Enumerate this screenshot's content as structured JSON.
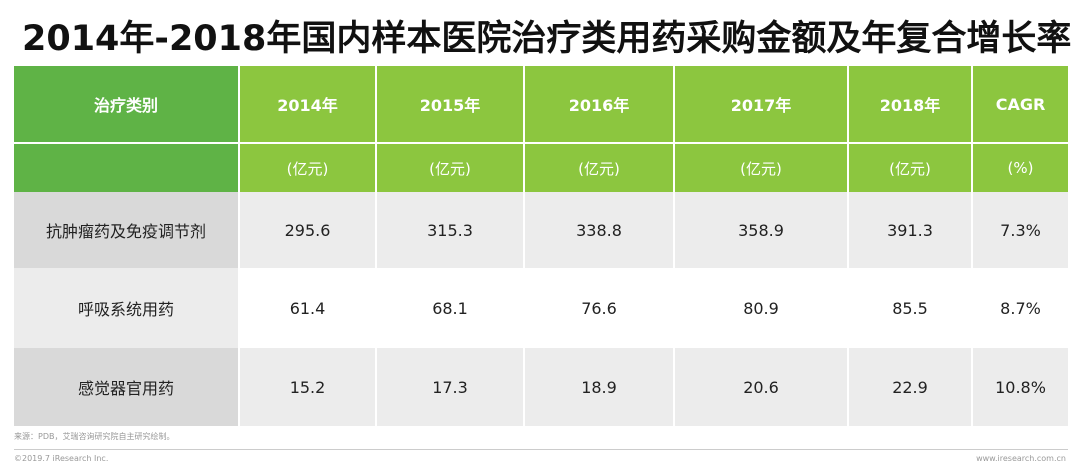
{
  "title": "2014年-2018年国内样本医院治疗类用药采购金额及年复合增长率",
  "table": {
    "headers": [
      "治疗类别",
      "2014年",
      "2015年",
      "2016年",
      "2017年",
      "2018年",
      "CAGR"
    ],
    "units": [
      "",
      "(亿元)",
      "(亿元)",
      "(亿元)",
      "(亿元)",
      "(亿元)",
      "(%)"
    ],
    "rows": [
      [
        "抗肿瘤药及免疫调节剂",
        "295.6",
        "315.3",
        "338.8",
        "358.9",
        "391.3",
        "7.3%"
      ],
      [
        "呼吸系统用药",
        "61.4",
        "68.1",
        "76.6",
        "80.9",
        "85.5",
        "8.7%"
      ],
      [
        "感觉器官用药",
        "15.2",
        "17.3",
        "18.9",
        "20.6",
        "22.9",
        "10.8%"
      ]
    ]
  },
  "footer": {
    "source": "来源：PDB，艾瑞咨询研究院自主研究绘制。",
    "copyright": "©2019.7 iResearch Inc.",
    "website": "www.iresearch.com.cn"
  },
  "colors": {
    "header_dark_green": "#5fb346",
    "header_light_green": "#8cc63f",
    "row_gray": "#d9d9d9",
    "row_light_gray": "#ececec"
  }
}
